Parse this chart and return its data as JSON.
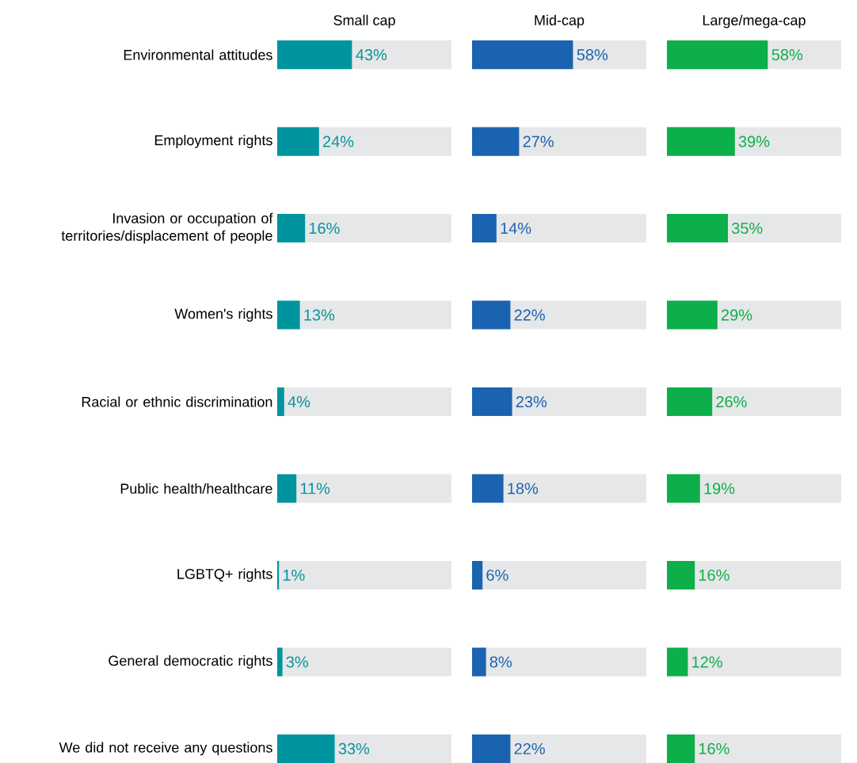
{
  "chart_data": [
    {
      "type": "bar",
      "orientation": "horizontal",
      "title": "Small cap",
      "tick_labels": "y",
      "xlim": [
        0,
        100
      ],
      "color": "#00959e",
      "categories": [
        "Environmental attitudes",
        "Employment rights",
        "Invasion or occupation of territories/displacement of people",
        "Women's rights",
        "Racial or ethnic discrimination",
        "Public health/healthcare",
        "LGBTQ+ rights",
        "General democratic rights",
        "We did not receive any questions"
      ],
      "values": [
        43,
        24,
        16,
        13,
        4,
        11,
        1,
        3,
        33
      ],
      "value_labels": [
        "43%",
        "24%",
        "16%",
        "13%",
        "4%",
        "11%",
        "1%",
        "3%",
        "33%"
      ]
    },
    {
      "type": "bar",
      "orientation": "horizontal",
      "title": "Mid-cap",
      "tick_labels": false,
      "xlim": [
        0,
        100
      ],
      "color": "#1a63b0",
      "categories": [
        null,
        null,
        null,
        null,
        null,
        null,
        null,
        null,
        null
      ],
      "values": [
        58,
        27,
        14,
        22,
        23,
        18,
        6,
        8,
        22
      ],
      "value_labels": [
        "58%",
        "27%",
        "14%",
        "22%",
        "23%",
        "18%",
        "6%",
        "8%",
        "22%"
      ]
    },
    {
      "type": "bar",
      "orientation": "horizontal",
      "title": "Large/mega-cap",
      "tick_labels": false,
      "xlim": [
        0,
        100
      ],
      "color": "#0caf4a",
      "categories": [
        null,
        null,
        null,
        null,
        null,
        null,
        null,
        null,
        null
      ],
      "values": [
        58,
        39,
        35,
        29,
        26,
        19,
        16,
        12,
        16
      ],
      "value_labels": [
        "58%",
        "39%",
        "35%",
        "29%",
        "26%",
        "19%",
        "16%",
        "12%",
        "16%"
      ]
    }
  ]
}
